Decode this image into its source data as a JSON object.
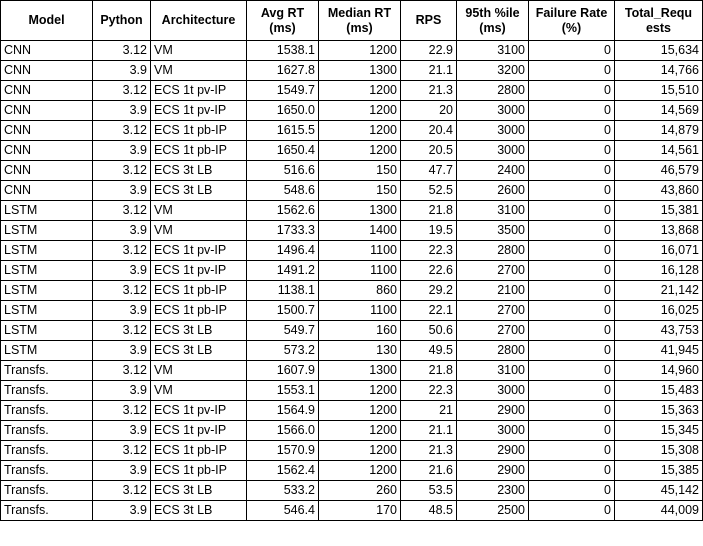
{
  "table": {
    "headers": [
      "Model",
      "Python",
      "Architecture",
      "Avg RT (ms)",
      "Median RT (ms)",
      "RPS",
      "95th %ile (ms)",
      "Failure Rate (%)",
      "Total_Requests"
    ],
    "header_lines": [
      [
        "Model"
      ],
      [
        "Python"
      ],
      [
        "Architecture"
      ],
      [
        "Avg RT",
        "(ms)"
      ],
      [
        "Median RT",
        "(ms)"
      ],
      [
        "RPS"
      ],
      [
        "95th %ile",
        "(ms)"
      ],
      [
        "Failure Rate",
        "(%)"
      ],
      [
        "Total_Requ",
        "ests"
      ]
    ],
    "rows": [
      [
        "CNN",
        "3.12",
        "VM",
        "1538.1",
        "1200",
        "22.9",
        "3100",
        "0",
        "15,634"
      ],
      [
        "CNN",
        "3.9",
        "VM",
        "1627.8",
        "1300",
        "21.1",
        "3200",
        "0",
        "14,766"
      ],
      [
        "CNN",
        "3.12",
        "ECS 1t pv-IP",
        "1549.7",
        "1200",
        "21.3",
        "2800",
        "0",
        "15,510"
      ],
      [
        "CNN",
        "3.9",
        "ECS 1t pv-IP",
        "1650.0",
        "1200",
        "20",
        "3000",
        "0",
        "14,569"
      ],
      [
        "CNN",
        "3.12",
        "ECS 1t pb-IP",
        "1615.5",
        "1200",
        "20.4",
        "3000",
        "0",
        "14,879"
      ],
      [
        "CNN",
        "3.9",
        "ECS 1t pb-IP",
        "1650.4",
        "1200",
        "20.5",
        "3000",
        "0",
        "14,561"
      ],
      [
        "CNN",
        "3.12",
        "ECS 3t LB",
        "516.6",
        "150",
        "47.7",
        "2400",
        "0",
        "46,579"
      ],
      [
        "CNN",
        "3.9",
        "ECS 3t LB",
        "548.6",
        "150",
        "52.5",
        "2600",
        "0",
        "43,860"
      ],
      [
        "LSTM",
        "3.12",
        "VM",
        "1562.6",
        "1300",
        "21.8",
        "3100",
        "0",
        "15,381"
      ],
      [
        "LSTM",
        "3.9",
        "VM",
        "1733.3",
        "1400",
        "19.5",
        "3500",
        "0",
        "13,868"
      ],
      [
        "LSTM",
        "3.12",
        "ECS 1t pv-IP",
        "1496.4",
        "1100",
        "22.3",
        "2800",
        "0",
        "16,071"
      ],
      [
        "LSTM",
        "3.9",
        "ECS 1t pv-IP",
        "1491.2",
        "1100",
        "22.6",
        "2700",
        "0",
        "16,128"
      ],
      [
        "LSTM",
        "3.12",
        "ECS 1t pb-IP",
        "1138.1",
        "860",
        "29.2",
        "2100",
        "0",
        "21,142"
      ],
      [
        "LSTM",
        "3.9",
        "ECS 1t pb-IP",
        "1500.7",
        "1100",
        "22.1",
        "2700",
        "0",
        "16,025"
      ],
      [
        "LSTM",
        "3.12",
        "ECS 3t LB",
        "549.7",
        "160",
        "50.6",
        "2700",
        "0",
        "43,753"
      ],
      [
        "LSTM",
        "3.9",
        "ECS 3t LB",
        "573.2",
        "130",
        "49.5",
        "2800",
        "0",
        "41,945"
      ],
      [
        "Transfs.",
        "3.12",
        "VM",
        "1607.9",
        "1300",
        "21.8",
        "3100",
        "0",
        "14,960"
      ],
      [
        "Transfs.",
        "3.9",
        "VM",
        "1553.1",
        "1200",
        "22.3",
        "3000",
        "0",
        "15,483"
      ],
      [
        "Transfs.",
        "3.12",
        "ECS 1t pv-IP",
        "1564.9",
        "1200",
        "21",
        "2900",
        "0",
        "15,363"
      ],
      [
        "Transfs.",
        "3.9",
        "ECS 1t pv-IP",
        "1566.0",
        "1200",
        "21.1",
        "3000",
        "0",
        "15,345"
      ],
      [
        "Transfs.",
        "3.12",
        "ECS 1t pb-IP",
        "1570.9",
        "1200",
        "21.3",
        "2900",
        "0",
        "15,308"
      ],
      [
        "Transfs.",
        "3.9",
        "ECS 1t pb-IP",
        "1562.4",
        "1200",
        "21.6",
        "2900",
        "0",
        "15,385"
      ],
      [
        "Transfs.",
        "3.12",
        "ECS 3t LB",
        "533.2",
        "260",
        "53.5",
        "2300",
        "0",
        "45,142"
      ],
      [
        "Transfs.",
        "3.9",
        "ECS 3t LB",
        "546.4",
        "170",
        "48.5",
        "2500",
        "0",
        "44,009"
      ]
    ]
  }
}
